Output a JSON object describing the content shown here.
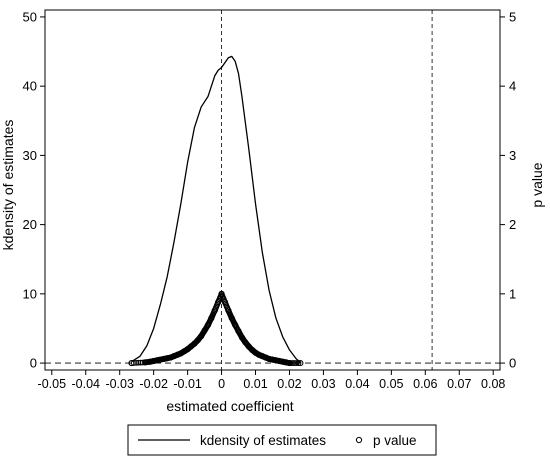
{
  "chart_data": {
    "type": "line",
    "xlabel": "estimated coefficient",
    "ylabel_left": "kdensity of estimates",
    "ylabel_right": "p value",
    "x_ticks": [
      "-0.05",
      "-0.04",
      "-0.03",
      "-0.02",
      "-0.01",
      "0",
      "0.01",
      "0.02",
      "0.03",
      "0.04",
      "0.05",
      "0.06",
      "0.07",
      "0.08"
    ],
    "y_left_ticks": [
      "0",
      "10",
      "20",
      "30",
      "40",
      "50"
    ],
    "y_right_ticks": [
      "0",
      "1",
      "2",
      "3",
      "4",
      "5"
    ],
    "xlim": [
      -0.052,
      0.082
    ],
    "ylim_left": [
      -1,
      51
    ],
    "ylim_right": [
      -0.1,
      5.1
    ],
    "reference_lines": {
      "vertical": [
        0,
        0.062
      ],
      "horizontal": [
        0
      ]
    },
    "legend_position": "bottom",
    "series": [
      {
        "name": "kdensity of estimates",
        "style": "line",
        "axis": "left",
        "color": "#000000",
        "points": [
          [
            -0.0265,
            0.2
          ],
          [
            -0.024,
            1.0
          ],
          [
            -0.022,
            2.5
          ],
          [
            -0.02,
            5.0
          ],
          [
            -0.018,
            8.5
          ],
          [
            -0.016,
            12.5
          ],
          [
            -0.014,
            17.5
          ],
          [
            -0.012,
            23.0
          ],
          [
            -0.01,
            29.0
          ],
          [
            -0.008,
            34.0
          ],
          [
            -0.006,
            37.0
          ],
          [
            -0.004,
            38.5
          ],
          [
            -0.003,
            40.0
          ],
          [
            -0.002,
            41.5
          ],
          [
            -0.001,
            42.3
          ],
          [
            0.0,
            42.7
          ],
          [
            0.001,
            43.4
          ],
          [
            0.002,
            44.1
          ],
          [
            0.003,
            44.3
          ],
          [
            0.004,
            43.6
          ],
          [
            0.005,
            41.8
          ],
          [
            0.006,
            38.5
          ],
          [
            0.008,
            31.0
          ],
          [
            0.01,
            23.0
          ],
          [
            0.012,
            16.0
          ],
          [
            0.014,
            10.5
          ],
          [
            0.016,
            6.5
          ],
          [
            0.018,
            3.8
          ],
          [
            0.02,
            1.9
          ],
          [
            0.022,
            0.6
          ],
          [
            0.0232,
            0.1
          ]
        ]
      },
      {
        "name": "p value",
        "style": "scatter",
        "axis": "right",
        "color": "#000000",
        "points": [
          [
            -0.0265,
            0.0
          ],
          [
            -0.0225,
            0.01
          ],
          [
            -0.021,
            0.02
          ],
          [
            -0.02,
            0.03
          ],
          [
            -0.019,
            0.04
          ],
          [
            -0.018,
            0.05
          ],
          [
            -0.017,
            0.06
          ],
          [
            -0.016,
            0.07
          ],
          [
            -0.015,
            0.08
          ],
          [
            -0.014,
            0.1
          ],
          [
            -0.013,
            0.12
          ],
          [
            -0.012,
            0.14
          ],
          [
            -0.011,
            0.17
          ],
          [
            -0.01,
            0.2
          ],
          [
            -0.009,
            0.24
          ],
          [
            -0.008,
            0.28
          ],
          [
            -0.007,
            0.33
          ],
          [
            -0.006,
            0.39
          ],
          [
            -0.005,
            0.47
          ],
          [
            -0.004,
            0.55
          ],
          [
            -0.003,
            0.65
          ],
          [
            -0.002,
            0.76
          ],
          [
            -0.001,
            0.88
          ],
          [
            0.0,
            1.0
          ],
          [
            0.001,
            0.88
          ],
          [
            0.002,
            0.76
          ],
          [
            0.003,
            0.65
          ],
          [
            0.004,
            0.55
          ],
          [
            0.005,
            0.46
          ],
          [
            0.006,
            0.37
          ],
          [
            0.007,
            0.3
          ],
          [
            0.008,
            0.24
          ],
          [
            0.009,
            0.19
          ],
          [
            0.01,
            0.15
          ],
          [
            0.011,
            0.12
          ],
          [
            0.012,
            0.1
          ],
          [
            0.013,
            0.08
          ],
          [
            0.014,
            0.06
          ],
          [
            0.015,
            0.05
          ],
          [
            0.016,
            0.04
          ],
          [
            0.017,
            0.03
          ],
          [
            0.018,
            0.02
          ],
          [
            0.019,
            0.01
          ],
          [
            0.02,
            0.0
          ],
          [
            0.0232,
            0.0
          ]
        ]
      }
    ]
  }
}
